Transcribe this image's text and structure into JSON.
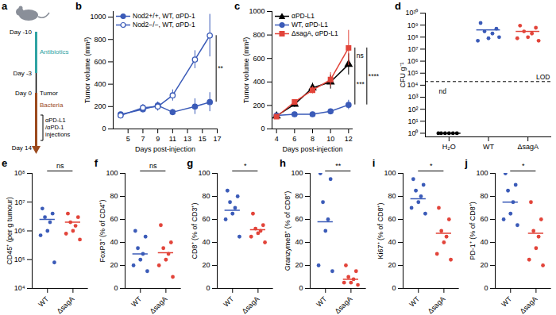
{
  "diagram": {
    "panel": "a",
    "day_labels": [
      "Day -10",
      "Day -3",
      "Day 0",
      "Day 14"
    ],
    "phase_labels": [
      "Antibiotics",
      "Tumor",
      "Bacteria"
    ],
    "injection_label": [
      "αPD-L1",
      "/αPD-1",
      "injections"
    ]
  },
  "chart_data": [
    {
      "panel": "b",
      "type": "line",
      "xlabel": "Days post-injection",
      "ylabel": "Tumor volume (mm³)",
      "x": [
        4,
        7,
        9,
        11,
        14,
        16
      ],
      "xlim": [
        3,
        17
      ],
      "xticks": [
        5,
        7,
        9,
        11,
        13,
        15,
        17
      ],
      "ylim": [
        0,
        1050
      ],
      "yticks": [
        0,
        200,
        400,
        600,
        800,
        1000
      ],
      "legend": "top-left",
      "series": [
        {
          "name": "Nod2+/+, WT, αPD-1",
          "color": "#3b5bb8",
          "marker": "circle",
          "values": [
            130,
            175,
            210,
            150,
            200,
            240
          ],
          "errors": [
            20,
            25,
            30,
            25,
            70,
            85
          ]
        },
        {
          "name": "Nod2−/−, WT, αPD-1",
          "color": "#3b5bb8",
          "marker": "open-circle",
          "values": [
            120,
            190,
            200,
            300,
            620,
            835
          ],
          "errors": [
            20,
            30,
            40,
            50,
            80,
            190
          ]
        }
      ],
      "annotations": [
        {
          "text": "**",
          "between": [
            "Nod2+/+, WT, αPD-1",
            "Nod2−/−, WT, αPD-1"
          ]
        }
      ]
    },
    {
      "panel": "c",
      "type": "line",
      "xlabel": "Days post-injection",
      "ylabel": "Tumor volume (mm³)",
      "x": [
        4,
        6,
        8,
        10,
        12
      ],
      "xlim": [
        3.5,
        12.5
      ],
      "xticks": [
        4,
        6,
        8,
        10,
        12
      ],
      "ylim": [
        0,
        1000
      ],
      "yticks": [
        0,
        200,
        400,
        600,
        800,
        1000
      ],
      "legend": "top-left",
      "series": [
        {
          "name": "αPD-L1",
          "color": "#000000",
          "marker": "triangle",
          "values": [
            110,
            210,
            350,
            400,
            550
          ],
          "errors": [
            10,
            25,
            40,
            60,
            90
          ]
        },
        {
          "name": "WT, αPD-L1",
          "color": "#3b5bb8",
          "marker": "circle",
          "values": [
            115,
            125,
            125,
            150,
            205
          ],
          "errors": [
            10,
            10,
            15,
            20,
            40
          ]
        },
        {
          "name": "ΔsagA, αPD-L1",
          "color": "#e2443a",
          "marker": "square",
          "values": [
            105,
            230,
            330,
            420,
            690
          ],
          "errors": [
            10,
            20,
            30,
            60,
            150
          ]
        }
      ],
      "annotations": [
        {
          "text": "ns",
          "between": [
            "αPD-L1",
            "ΔsagA, αPD-L1"
          ]
        },
        {
          "text": "***",
          "between": [
            "WT, αPD-L1",
            "αPD-L1"
          ]
        },
        {
          "text": "****",
          "between": [
            "WT, αPD-L1",
            "ΔsagA, αPD-L1"
          ]
        }
      ]
    },
    {
      "panel": "d",
      "type": "scatter",
      "ylabel": "CFU g⁻¹",
      "log": "y",
      "categories": [
        "H₂O",
        "WT",
        "ΔsagA"
      ],
      "colors": [
        "#000000",
        "#3b5bb8",
        "#e2443a"
      ],
      "values": [
        [
          1,
          1,
          1,
          1,
          1,
          1
        ],
        [
          1500000000,
          500000000,
          300000000,
          200000000,
          80000000,
          50000000,
          100000000
        ],
        [
          900000000,
          600000000,
          300000000,
          200000000,
          100000000,
          80000000,
          50000000
        ]
      ],
      "means": [
        1,
        400000000,
        300000000
      ],
      "ylim": [
        0.5,
        10000000000
      ],
      "yticks": [
        {
          "value": 1,
          "label": "10⁰"
        },
        {
          "value": 10,
          "label": "10¹"
        },
        {
          "value": 100,
          "label": "10²"
        },
        {
          "value": 1000,
          "label": "10³"
        },
        {
          "value": 10000,
          "label": "10⁴"
        },
        {
          "value": 100000,
          "label": "10⁵"
        },
        {
          "value": 1000000,
          "label": "10⁶"
        },
        {
          "value": 10000000,
          "label": "10⁷"
        },
        {
          "value": 100000000,
          "label": "10⁸"
        },
        {
          "value": 1000000000,
          "label": "10⁹"
        },
        {
          "value": 10000000000,
          "label": "10¹⁰"
        }
      ],
      "lod": {
        "value": 20000,
        "label": "LOD"
      },
      "nd": {
        "label": "nd",
        "category": "H₂O"
      }
    },
    {
      "panel": "e",
      "type": "scatter",
      "ylabel": "CD45⁺ (per g tumour)",
      "log": "y",
      "categories": [
        "WT",
        "ΔsagA"
      ],
      "colors": [
        "#3b5bb8",
        "#e2443a"
      ],
      "values": [
        [
          6000000,
          4000000,
          3000000,
          2000000,
          1000000,
          700000,
          80000
        ],
        [
          4000000,
          3000000,
          2000000,
          1500000,
          1000000,
          800000,
          500000
        ]
      ],
      "means": [
        2500000,
        2000000
      ],
      "ylim": [
        10000,
        100000000
      ],
      "yticks": [
        {
          "value": 10000,
          "label": "10⁴"
        },
        {
          "value": 100000,
          "label": "10⁵"
        },
        {
          "value": 1000000,
          "label": "10⁶"
        },
        {
          "value": 10000000,
          "label": "10⁷"
        },
        {
          "value": 100000000,
          "label": "10⁸"
        }
      ],
      "annotations": [
        {
          "text": "ns",
          "between": [
            "WT",
            "ΔsagA"
          ]
        }
      ]
    },
    {
      "panel": "f",
      "type": "scatter",
      "ylabel": "FoxP3⁺ (% of CD4⁺)",
      "categories": [
        "WT",
        "ΔsagA"
      ],
      "colors": [
        "#3b5bb8",
        "#e2443a"
      ],
      "values": [
        [
          50,
          45,
          35,
          30,
          25,
          20,
          15
        ],
        [
          55,
          40,
          35,
          30,
          25,
          20,
          10
        ]
      ],
      "means": [
        30,
        31
      ],
      "ylim": [
        0,
        100
      ],
      "yticks": [
        0,
        20,
        40,
        60,
        80,
        100
      ],
      "annotations": [
        {
          "text": "ns",
          "between": [
            "WT",
            "ΔsagA"
          ]
        }
      ]
    },
    {
      "panel": "g",
      "type": "scatter",
      "ylabel": "CD8⁺ (% of CD3⁺)",
      "categories": [
        "WT",
        "ΔsagA"
      ],
      "colors": [
        "#3b5bb8",
        "#e2443a"
      ],
      "values": [
        [
          85,
          80,
          75,
          70,
          65,
          60,
          45
        ],
        [
          65,
          55,
          52,
          50,
          48,
          45,
          40
        ]
      ],
      "means": [
        68,
        51
      ],
      "ylim": [
        0,
        100
      ],
      "yticks": [
        0,
        20,
        40,
        60,
        80,
        100
      ],
      "annotations": [
        {
          "text": "*",
          "between": [
            "WT",
            "ΔsagA"
          ]
        }
      ]
    },
    {
      "panel": "h",
      "type": "scatter",
      "ylabel": "GranzymeB⁺ (% of CD8⁺)",
      "categories": [
        "WT",
        "ΔsagA"
      ],
      "colors": [
        "#3b5bb8",
        "#e2443a"
      ],
      "values": [
        [
          100,
          95,
          75,
          60,
          50,
          20,
          15
        ],
        [
          20,
          15,
          10,
          8,
          5,
          5,
          3
        ]
      ],
      "means": [
        58,
        8
      ],
      "ylim": [
        0,
        100
      ],
      "yticks": [
        0,
        20,
        40,
        60,
        80,
        100
      ],
      "annotations": [
        {
          "text": "**",
          "between": [
            "WT",
            "ΔsagA"
          ]
        }
      ]
    },
    {
      "panel": "i",
      "type": "scatter",
      "ylabel": "Ki67⁺ (% of CD8⁺)",
      "categories": [
        "WT",
        "ΔsagA"
      ],
      "colors": [
        "#3b5bb8",
        "#e2443a"
      ],
      "values": [
        [
          95,
          90,
          85,
          80,
          75,
          70,
          65
        ],
        [
          70,
          60,
          50,
          45,
          40,
          30,
          25
        ]
      ],
      "means": [
        78,
        48
      ],
      "ylim": [
        0,
        100
      ],
      "yticks": [
        0,
        20,
        40,
        60,
        80,
        100
      ],
      "annotations": [
        {
          "text": "*",
          "between": [
            "WT",
            "ΔsagA"
          ]
        }
      ]
    },
    {
      "panel": "j",
      "type": "scatter",
      "ylabel": "PD-1⁺ (% of CD8⁺)",
      "categories": [
        "WT",
        "ΔsagA"
      ],
      "colors": [
        "#3b5bb8",
        "#e2443a"
      ],
      "values": [
        [
          100,
          90,
          85,
          75,
          65,
          60,
          55
        ],
        [
          75,
          60,
          50,
          45,
          35,
          25,
          20
        ]
      ],
      "means": [
        75,
        48
      ],
      "ylim": [
        0,
        100
      ],
      "yticks": [
        0,
        20,
        40,
        60,
        80,
        100
      ],
      "annotations": [
        {
          "text": "*",
          "between": [
            "WT",
            "ΔsagA"
          ]
        }
      ]
    }
  ]
}
